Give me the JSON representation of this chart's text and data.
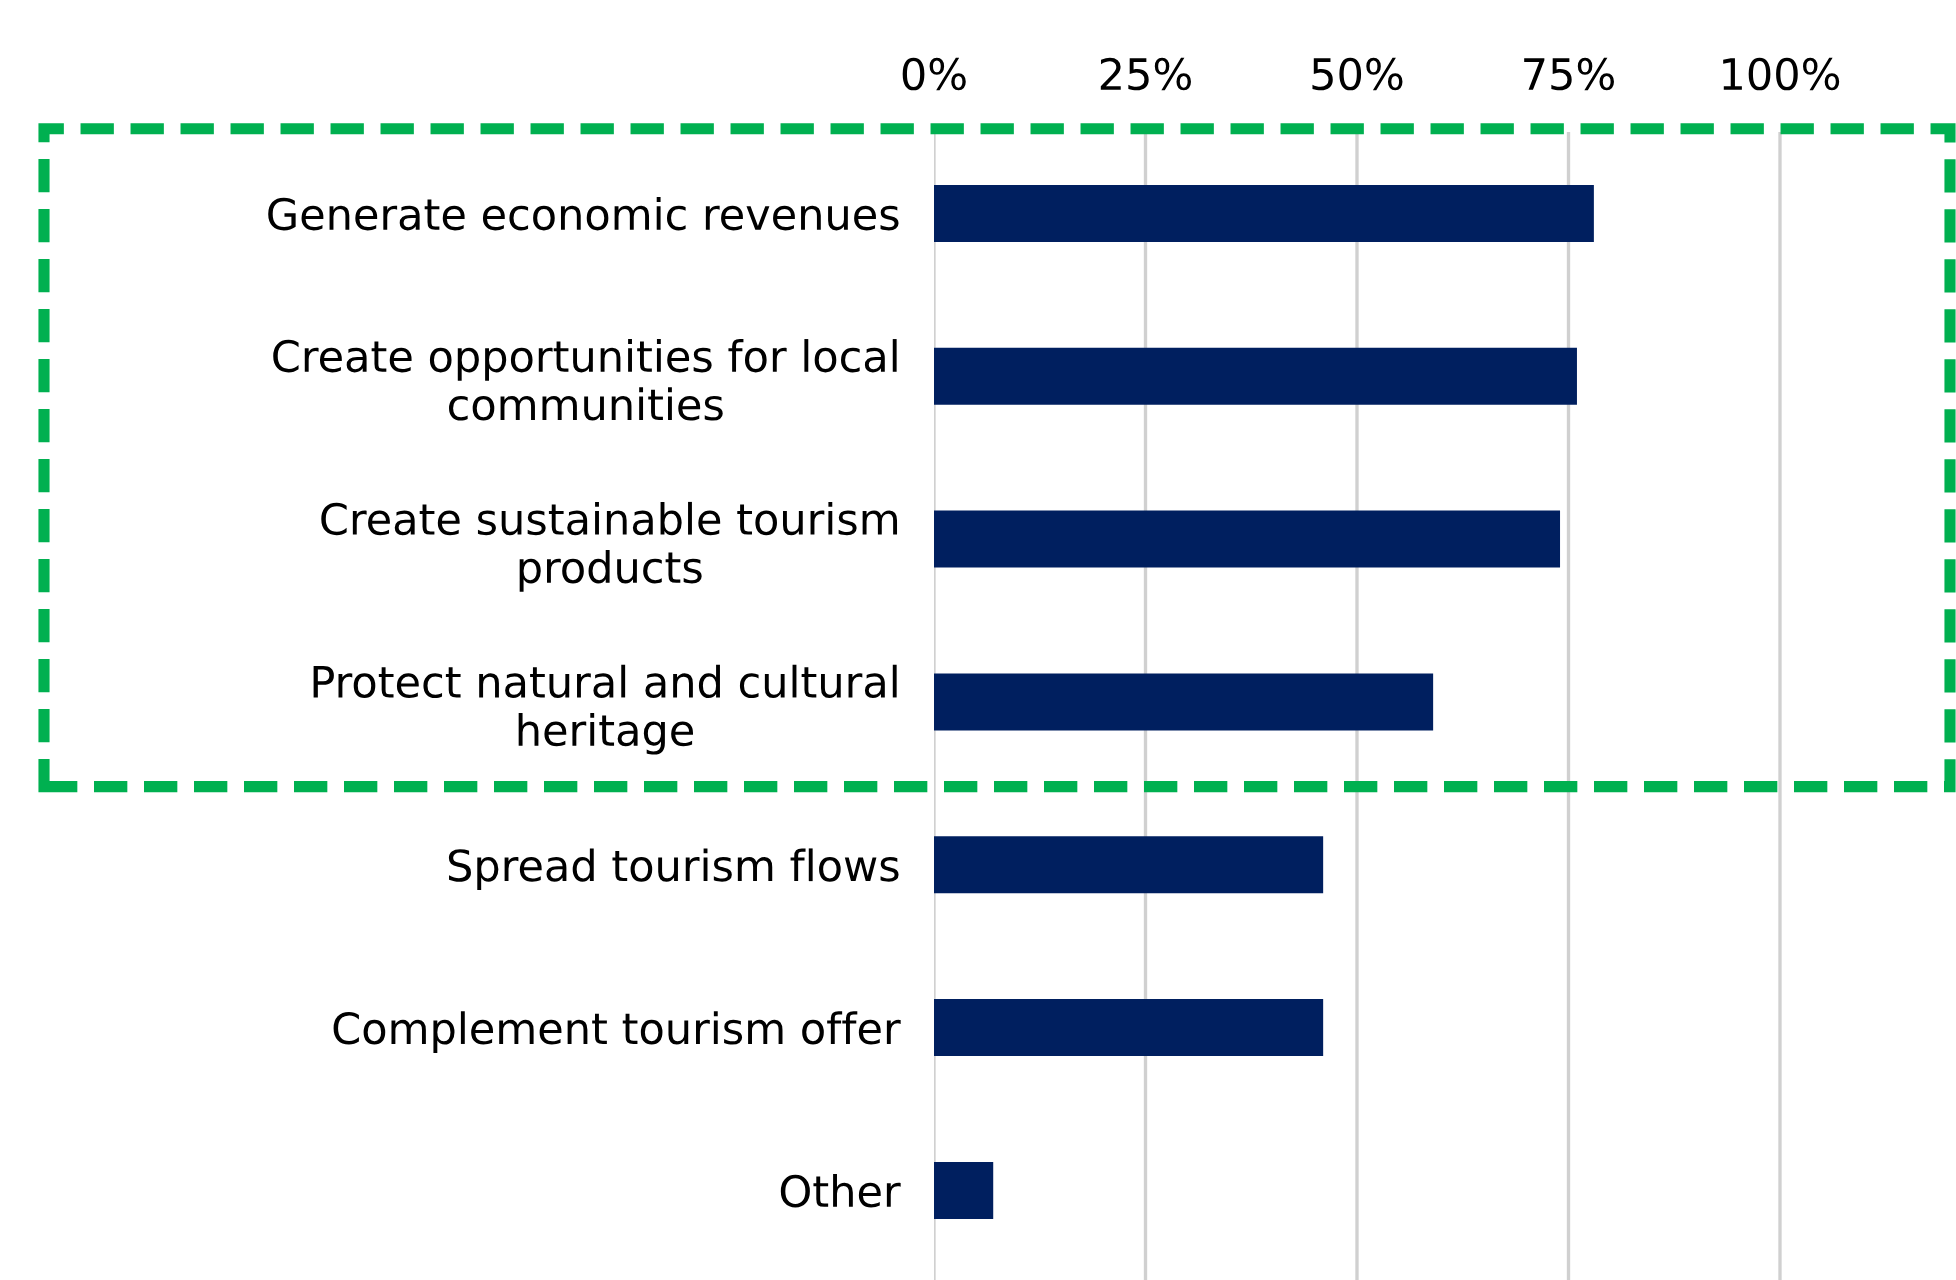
{
  "chart_data": {
    "type": "bar",
    "orientation": "horizontal",
    "categories": [
      "Generate economic revenues",
      "Create opportunities for local\ncommunities",
      "Create sustainable tourism\nproducts",
      "Protect natural and cultural\nheritage",
      "Spread tourism flows",
      "Complement tourism offer",
      "Other"
    ],
    "values": [
      78,
      76,
      74,
      59,
      46,
      46,
      7
    ],
    "color": "#001f5f",
    "xlim": [
      0,
      120
    ],
    "xticks": [
      {
        "value": 0,
        "label": "0%"
      },
      {
        "value": 25,
        "label": "25%"
      },
      {
        "value": 50,
        "label": "50%"
      },
      {
        "value": 75,
        "label": "75%"
      },
      {
        "value": 100,
        "label": "100%"
      }
    ],
    "grid": "x"
  }
}
